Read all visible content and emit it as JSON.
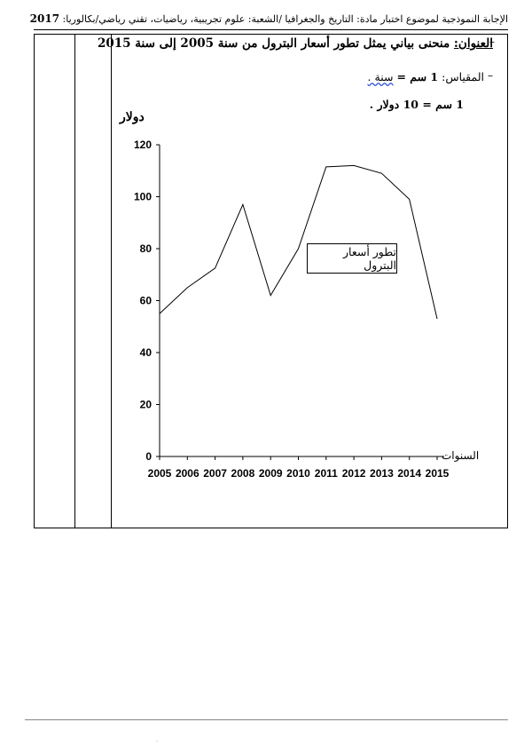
{
  "header": {
    "text": "الإجابة النموذجية لموضوع اختبار مادة: التاريخ والجغرافيا /الشعبة: علوم تجريبية، رياضيات، تقني رياضي/بكالوريا:",
    "year": "2017"
  },
  "title": {
    "label": "العنوان:",
    "text": "منحنى بياني يمثل تطور أسعار البترول من سنة 2005 إلى سنة 2015"
  },
  "scale": {
    "label": "المقياس:",
    "line1_value": "1 سم =",
    "line1_unit": "سنة .",
    "line2": "1 سم = 10 دولار ."
  },
  "chart_data": {
    "type": "line",
    "ylabel": "دولار",
    "xlabel": "السنوات",
    "x": [
      2005,
      2006,
      2007,
      2008,
      2009,
      2010,
      2011,
      2012,
      2013,
      2014,
      2015
    ],
    "values": [
      55,
      65,
      72.5,
      97,
      62,
      80,
      111.5,
      112,
      109,
      99,
      53
    ],
    "yticks": [
      0,
      20,
      40,
      60,
      80,
      100,
      120
    ],
    "ylim": [
      0,
      120
    ],
    "xlim": [
      2005,
      2015
    ],
    "annotation": "تطور أسعار البترول",
    "grid": false
  }
}
